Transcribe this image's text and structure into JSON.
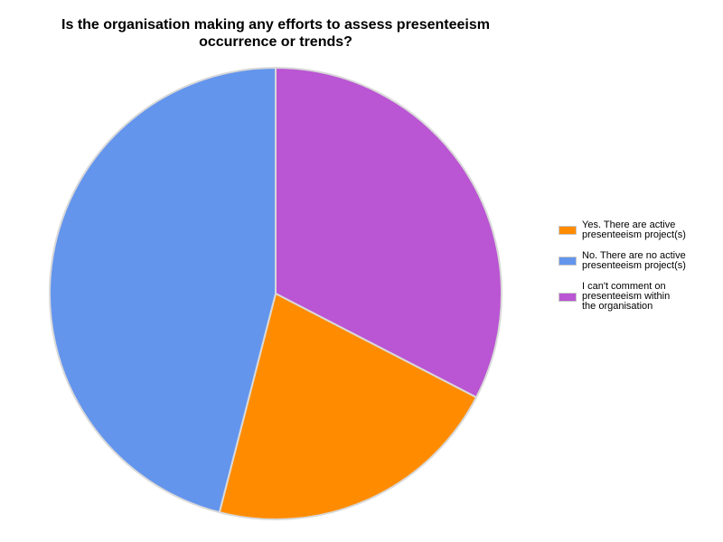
{
  "title_lines": [
    "Is the organisation making any efforts to assess presenteeism",
    "occurrence or trends?"
  ],
  "chart_data": {
    "type": "pie",
    "title": "Is the organisation making any efforts to assess presenteeism occurrence or trends?",
    "start_angle_deg": 0,
    "direction": "clockwise",
    "legend_position": "right",
    "slice_border_color": "#d9d9d9",
    "slices": [
      {
        "label": "I can't comment on presenteeism within the organisation",
        "value": 32.6,
        "color": "#BA55D3"
      },
      {
        "label": "Yes. There are active presenteeism project(s)",
        "value": 21.4,
        "color": "#FF8C00"
      },
      {
        "label": "No. There are no active presenteeism project(s)",
        "value": 46.0,
        "color": "#6495ED"
      }
    ]
  },
  "legend": {
    "items": [
      {
        "label_lines": "Yes. There are active\npresenteeism project(s)",
        "color": "#FF8C00"
      },
      {
        "label_lines": "No. There are no active\npresenteeism project(s)",
        "color": "#6495ED"
      },
      {
        "label_lines": "I can't comment on\npresenteeism within\nthe organisation",
        "color": "#BA55D3"
      }
    ]
  }
}
